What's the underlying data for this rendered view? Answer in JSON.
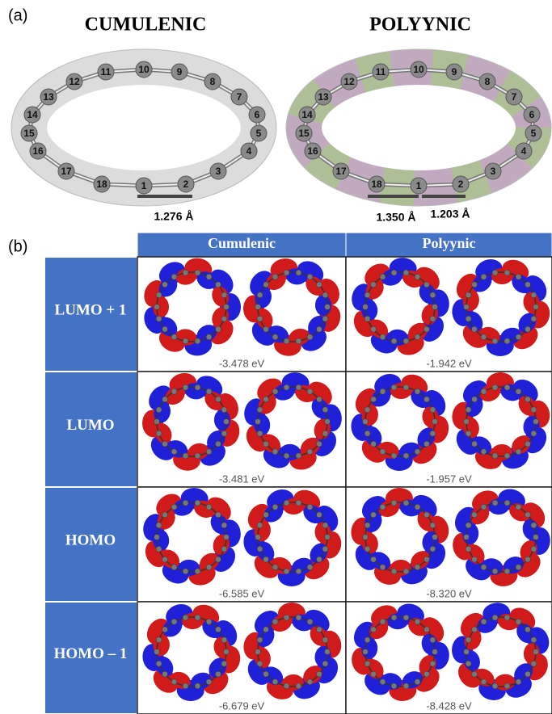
{
  "panel_a": {
    "label": "(a)",
    "structures": [
      {
        "title": "CUMULENIC",
        "atoms": [
          "1",
          "2",
          "3",
          "4",
          "5",
          "6",
          "7",
          "8",
          "9",
          "10",
          "11",
          "12",
          "13",
          "14",
          "15",
          "16",
          "17",
          "18"
        ],
        "bond_lengths": [
          "1.276 Å"
        ]
      },
      {
        "title": "POLYYNIC",
        "atoms": [
          "1",
          "2",
          "3",
          "4",
          "5",
          "6",
          "7",
          "8",
          "9",
          "10",
          "11",
          "12",
          "13",
          "14",
          "15",
          "16",
          "17",
          "18"
        ],
        "bond_lengths": [
          "1.350 Å",
          "1.203 Å"
        ]
      }
    ]
  },
  "panel_b": {
    "label": "(b)",
    "table": {
      "columns": [
        "Cumulenic",
        "Polyynic"
      ],
      "rows": [
        {
          "label": "LUMO + 1",
          "energies": [
            "-3.478 eV",
            "-1.942 eV"
          ]
        },
        {
          "label": "LUMO",
          "energies": [
            "-3.481 eV",
            "-1.957 eV"
          ]
        },
        {
          "label": "HOMO",
          "energies": [
            "-6.585 eV",
            "-8.320 eV"
          ]
        },
        {
          "label": "HOMO – 1",
          "energies": [
            "-6.679 eV",
            "-8.428 eV"
          ]
        }
      ]
    }
  }
}
